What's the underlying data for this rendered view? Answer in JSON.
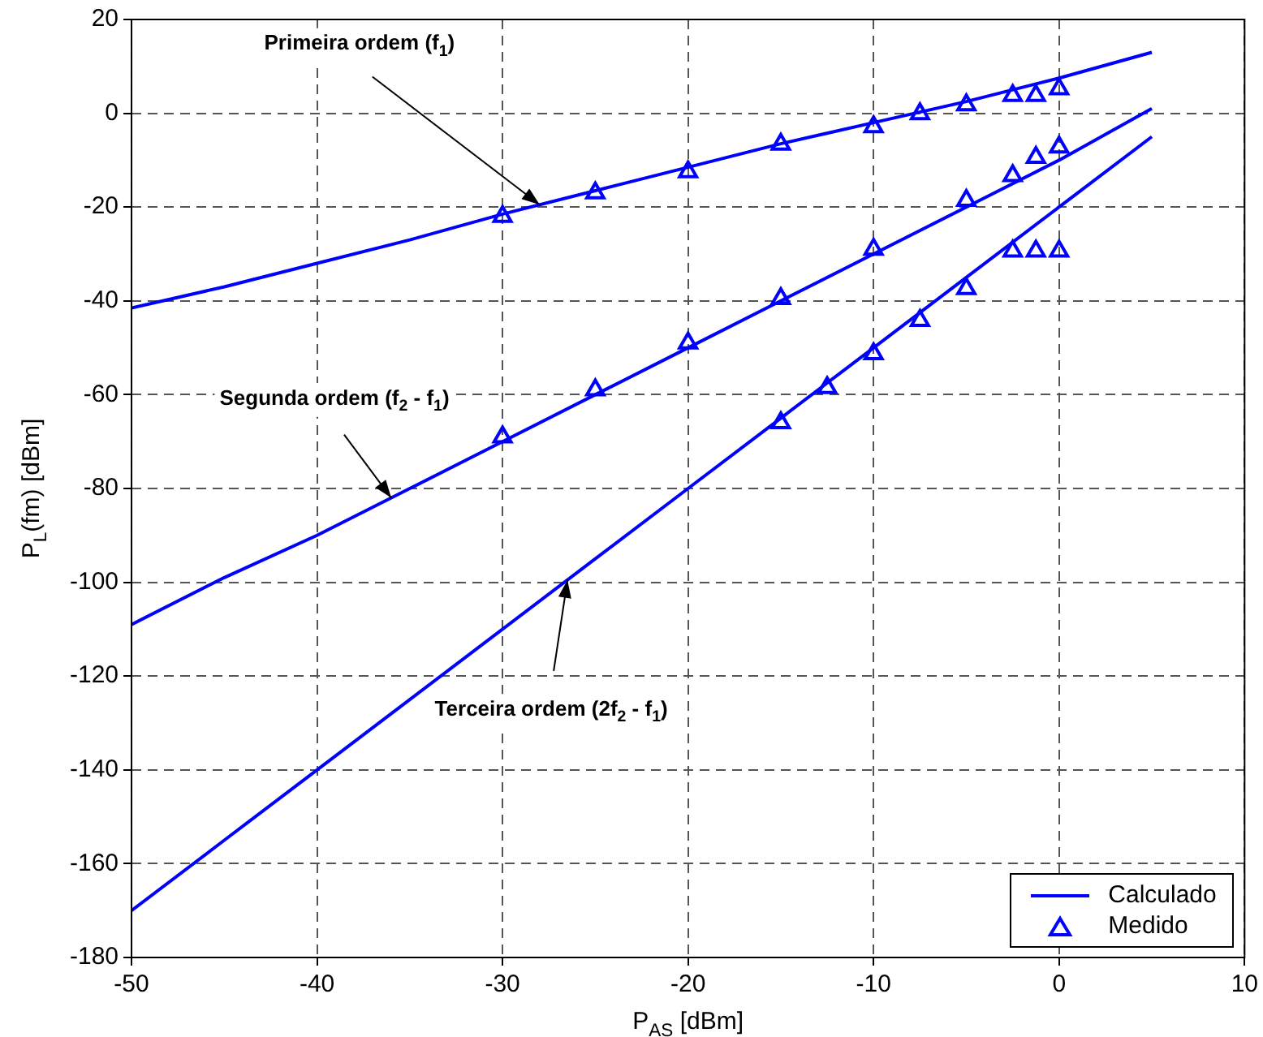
{
  "chart_data": {
    "type": "line",
    "xlabel": "P$_{AS}$ [dBm]",
    "ylabel": "P$_{L}$(fm) [dBm]",
    "xlim": [
      -50,
      10
    ],
    "xticks": [
      -50,
      -40,
      -30,
      -20,
      -10,
      0,
      10
    ],
    "ylim": [
      -180,
      20
    ],
    "yticks": [
      -180,
      -160,
      -140,
      -120,
      -100,
      -80,
      -60,
      -40,
      -20,
      0,
      20
    ],
    "grid": true,
    "legend": "bottom right",
    "line_style": "solid",
    "series": [
      {
        "name": "Calculado",
        "color": "#0000ff",
        "marker": "none",
        "x": [
          -50,
          -45,
          -40,
          -35,
          -30,
          -25,
          -20,
          -15,
          -10,
          -5,
          0,
          5
        ],
        "values": [
          -41.5,
          -37,
          -32,
          -27,
          -21.5,
          -16.5,
          -11.5,
          -6.5,
          -2,
          2.5,
          7.5,
          13
        ]
      },
      {
        "color": "#0000ff",
        "marker": "none",
        "x": [
          -50,
          -45,
          -40,
          -35,
          -30,
          -25,
          -20,
          -15,
          -10,
          -5,
          0,
          5
        ],
        "values": [
          -109,
          -99,
          -90,
          -80,
          -70,
          -60,
          -50,
          -40,
          -30,
          -20,
          -10,
          1
        ]
      },
      {
        "color": "#0000ff",
        "marker": "none",
        "x": [
          -50,
          -45,
          -40,
          -35,
          -30,
          -25,
          -20,
          -15,
          -10,
          -5,
          0,
          5
        ],
        "values": [
          -170,
          -155,
          -140,
          -125,
          -110,
          -95,
          -80,
          -65,
          -50,
          -35,
          -20,
          -5
        ]
      },
      {
        "name": "Medido",
        "type": "scatter",
        "color": "#0000ff",
        "marker": "triangle",
        "x": [
          -30,
          -25,
          -20,
          -15,
          -10,
          -7.5,
          -5,
          -2.5,
          -1.25,
          0
        ],
        "values": [
          -22,
          -17,
          -12.5,
          -6.6,
          -2.9,
          -0.1,
          1.8,
          3.8,
          3.8,
          5.2
        ]
      },
      {
        "type": "scatter",
        "color": "#0000ff",
        "marker": "triangle",
        "x": [
          -30,
          -25,
          -20,
          -15,
          -10,
          -5,
          -2.5,
          -1.25,
          0
        ],
        "values": [
          -69,
          -59,
          -49,
          -39.5,
          -29,
          -18.6,
          -13.3,
          -9.4,
          -7.2
        ]
      },
      {
        "type": "scatter",
        "color": "#0000ff",
        "marker": "triangle",
        "x": [
          -15,
          -12.5,
          -10,
          -7.5,
          -5,
          -2.5,
          -1.25,
          0
        ],
        "values": [
          -66,
          -58.5,
          -51.3,
          -44.2,
          -37.4,
          -29.4,
          -29.4,
          -29.4
        ]
      }
    ],
    "annotations": [
      {
        "text": "Primeira ordem (f$_{1}$)",
        "x": -28,
        "y": -19.5
      },
      {
        "text": "Segunda ordem (f$_{2}$ - f$_{1}$)",
        "x": -36,
        "y": -82
      },
      {
        "text": "Terceira ordem (2f$_{2}$ - f$_{1}$)",
        "x": -26.5,
        "y": -99.5
      }
    ]
  }
}
